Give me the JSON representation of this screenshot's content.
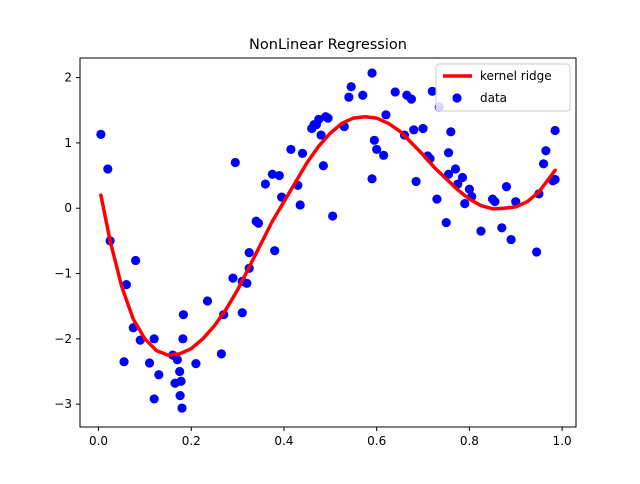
{
  "chart_data": {
    "type": "scatter",
    "title": "NonLinear Regression",
    "xlabel": "",
    "ylabel": "",
    "xlim": [
      -0.04,
      1.03
    ],
    "ylim": [
      -3.35,
      2.3
    ],
    "xticks": [
      0.0,
      0.2,
      0.4,
      0.6,
      0.8,
      1.0
    ],
    "xtick_labels": [
      "0.0",
      "0.2",
      "0.4",
      "0.6",
      "0.8",
      "1.0"
    ],
    "yticks": [
      -3,
      -2,
      -1,
      0,
      1,
      2
    ],
    "ytick_labels": [
      "−3",
      "−2",
      "−1",
      "0",
      "1",
      "2"
    ],
    "grid": false,
    "legend_position": "top-right",
    "series": [
      {
        "name": "kernel ridge",
        "type": "line",
        "color": "#ff0000",
        "x": [
          0.005,
          0.025,
          0.05,
          0.075,
          0.1,
          0.125,
          0.15,
          0.175,
          0.2,
          0.225,
          0.25,
          0.275,
          0.3,
          0.325,
          0.35,
          0.375,
          0.4,
          0.425,
          0.45,
          0.475,
          0.5,
          0.525,
          0.55,
          0.575,
          0.6,
          0.625,
          0.65,
          0.675,
          0.7,
          0.725,
          0.75,
          0.775,
          0.8,
          0.825,
          0.85,
          0.875,
          0.9,
          0.925,
          0.95,
          0.985
        ],
        "y": [
          0.2,
          -0.5,
          -1.2,
          -1.7,
          -2.0,
          -2.18,
          -2.25,
          -2.23,
          -2.15,
          -2.0,
          -1.8,
          -1.55,
          -1.25,
          -0.9,
          -0.55,
          -0.2,
          0.1,
          0.4,
          0.7,
          0.95,
          1.15,
          1.3,
          1.38,
          1.4,
          1.38,
          1.3,
          1.18,
          1.0,
          0.82,
          0.62,
          0.45,
          0.28,
          0.14,
          0.04,
          -0.01,
          0.0,
          0.02,
          0.1,
          0.25,
          0.58
        ]
      },
      {
        "name": "data",
        "type": "scatter",
        "color": "#0000ff",
        "x": [
          0.005,
          0.02,
          0.025,
          0.06,
          0.055,
          0.08,
          0.075,
          0.09,
          0.11,
          0.12,
          0.12,
          0.13,
          0.16,
          0.165,
          0.17,
          0.175,
          0.178,
          0.176,
          0.18,
          0.182,
          0.183,
          0.21,
          0.235,
          0.265,
          0.27,
          0.29,
          0.295,
          0.31,
          0.31,
          0.32,
          0.325,
          0.325,
          0.34,
          0.345,
          0.36,
          0.375,
          0.38,
          0.39,
          0.395,
          0.415,
          0.43,
          0.435,
          0.44,
          0.46,
          0.465,
          0.47,
          0.475,
          0.48,
          0.485,
          0.49,
          0.495,
          0.505,
          0.53,
          0.54,
          0.545,
          0.57,
          0.59,
          0.59,
          0.595,
          0.6,
          0.615,
          0.62,
          0.64,
          0.66,
          0.665,
          0.675,
          0.68,
          0.685,
          0.7,
          0.71,
          0.715,
          0.72,
          0.73,
          0.735,
          0.75,
          0.755,
          0.755,
          0.76,
          0.77,
          0.775,
          0.785,
          0.79,
          0.8,
          0.805,
          0.825,
          0.85,
          0.855,
          0.87,
          0.88,
          0.89,
          0.9,
          0.945,
          0.95,
          0.96,
          0.965,
          0.98,
          0.985,
          0.985
        ],
        "y": [
          1.13,
          0.6,
          -0.5,
          -1.17,
          -2.35,
          -0.8,
          -1.83,
          -2.02,
          -2.37,
          -2.0,
          -2.92,
          -2.55,
          -2.25,
          -2.68,
          -2.32,
          -2.5,
          -2.65,
          -2.87,
          -3.06,
          -2.0,
          -1.63,
          -2.38,
          -1.42,
          -2.23,
          -1.63,
          -1.07,
          0.7,
          -1.12,
          -1.6,
          -1.15,
          -0.92,
          -0.68,
          -0.2,
          -0.23,
          0.37,
          0.52,
          -0.65,
          0.5,
          0.17,
          0.9,
          0.35,
          0.05,
          0.84,
          1.22,
          1.28,
          1.28,
          1.36,
          1.12,
          0.65,
          1.4,
          1.38,
          -0.12,
          1.25,
          1.7,
          1.86,
          1.73,
          2.07,
          0.45,
          1.04,
          0.9,
          0.81,
          1.43,
          1.78,
          1.12,
          1.73,
          1.67,
          1.2,
          0.41,
          1.22,
          0.8,
          0.76,
          1.79,
          0.14,
          1.55,
          -0.22,
          0.52,
          0.85,
          1.17,
          0.6,
          0.37,
          0.47,
          0.07,
          0.29,
          0.18,
          -0.35,
          0.14,
          0.1,
          -0.3,
          0.33,
          -0.48,
          0.1,
          -0.67,
          0.22,
          0.68,
          0.88,
          0.42,
          0.44,
          1.19
        ]
      }
    ]
  }
}
